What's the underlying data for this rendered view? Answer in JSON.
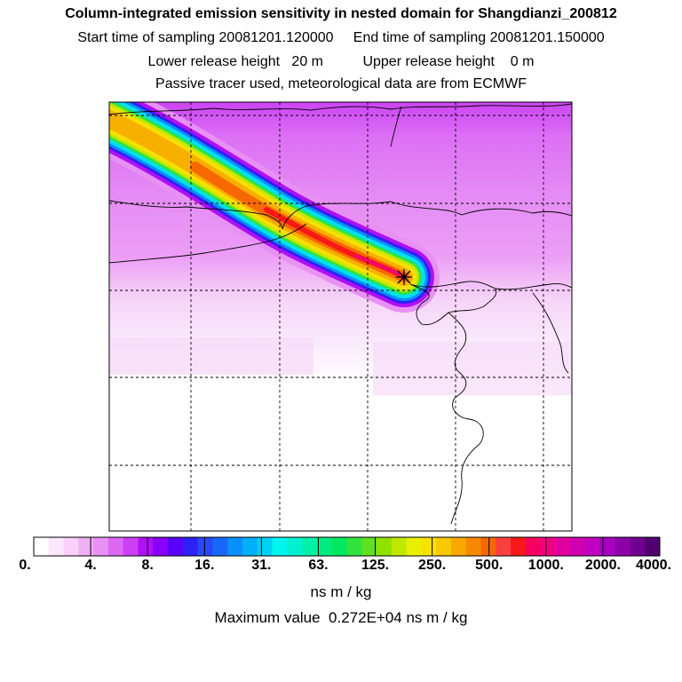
{
  "header": {
    "title": "Column-integrated emission sensitivity in nested domain for Shangdianzi_200812",
    "sampling_line": "Start time of sampling 20081201.120000     End time of sampling 20081201.150000",
    "release_line": "Lower release height   20 m          Upper release height    0 m",
    "tracer_line": "Passive tracer used, meteorological data are from ECMWF"
  },
  "colorbar": {
    "tick_labels": [
      "0.",
      "4.",
      "8.",
      "16.",
      "31.",
      "63.",
      "125.",
      "250.",
      "500.",
      "1000.",
      "2000.",
      "4000."
    ],
    "colors": [
      "#ffffff",
      "#fce8fc",
      "#f8d0f8",
      "#f0b0f4",
      "#e890f4",
      "#dc68f4",
      "#cc40f4",
      "#b010f4",
      "#8800f8",
      "#5a00f8",
      "#3020f8",
      "#2848f8",
      "#1868f8",
      "#0890f8",
      "#00b0f8",
      "#00d0f4",
      "#00f4f0",
      "#00f0d0",
      "#00f0a8",
      "#00ec80",
      "#00e860",
      "#30e440",
      "#60e020",
      "#90e000",
      "#c0e800",
      "#e8f000",
      "#f8e000",
      "#f8c800",
      "#f8a800",
      "#f88800",
      "#f86800",
      "#f84040",
      "#f81818",
      "#f80060",
      "#f00080",
      "#e000a0",
      "#d000b0",
      "#c000c0",
      "#a800c0",
      "#8c00a8",
      "#700090",
      "#500070"
    ],
    "unit_label": "ns m / kg",
    "max_label": "Maximum value  0.272E+04 ns m / kg"
  },
  "chart_data": {
    "type": "heatmap",
    "title": "Column-integrated emission sensitivity in nested domain for Shangdianzi_200812",
    "units": "ns m / kg",
    "color_scale_breaks": [
      0,
      4,
      8,
      16,
      31,
      63,
      125,
      250,
      500,
      1000,
      2000,
      4000
    ],
    "maximum_value": 2720,
    "receptor": "Shangdianzi",
    "plume": {
      "direction": "from northwest toward receptor",
      "core_range": "250-2000",
      "background_north": "4-8",
      "background_south": "0-4"
    },
    "grid": true
  }
}
